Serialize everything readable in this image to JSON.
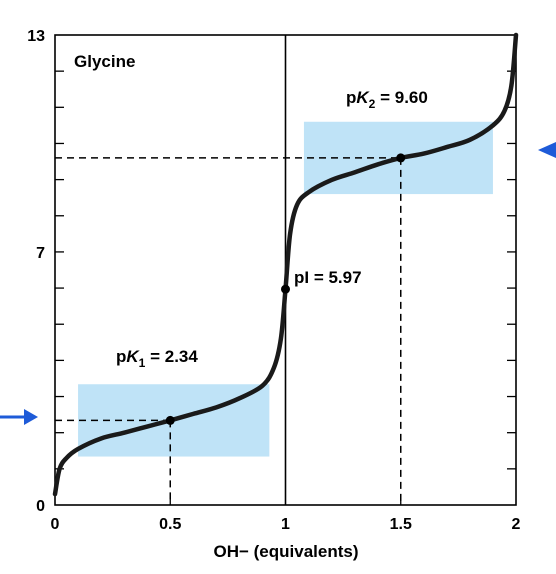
{
  "chart_data": {
    "type": "line",
    "title": "Glycine",
    "xlabel": "OH− (equivalents)",
    "ylabel": "",
    "xlim": [
      0,
      2
    ],
    "ylim": [
      0,
      13
    ],
    "x_ticks": [
      0,
      0.5,
      1,
      1.5,
      2
    ],
    "x_tick_labels": [
      "0",
      "0.5",
      "1",
      "1.5",
      "2"
    ],
    "y_ticks_labeled": [
      0,
      7,
      13
    ],
    "y_tick_labels": [
      "0",
      "7",
      "13"
    ],
    "grid": false,
    "series": [
      {
        "values_x": [
          0,
          0.02,
          0.05,
          0.1,
          0.2,
          0.3,
          0.4,
          0.5,
          0.6,
          0.7,
          0.8,
          0.9,
          0.95,
          0.98,
          1.0,
          1.02,
          1.05,
          1.1,
          1.2,
          1.3,
          1.4,
          1.5,
          1.6,
          1.7,
          1.8,
          1.9,
          1.95,
          1.98,
          2.0
        ],
        "values_y": [
          0.3,
          1.0,
          1.3,
          1.55,
          1.84,
          2.0,
          2.17,
          2.34,
          2.52,
          2.7,
          2.95,
          3.3,
          3.8,
          4.6,
          5.97,
          7.5,
          8.3,
          8.65,
          8.99,
          9.2,
          9.42,
          9.6,
          9.72,
          9.9,
          10.1,
          10.5,
          10.9,
          11.6,
          13.0
        ]
      }
    ],
    "shaded_regions": [
      {
        "x": [
          0.1,
          0.93
        ],
        "y": [
          1.34,
          3.34
        ]
      },
      {
        "x": [
          1.08,
          1.9
        ],
        "y": [
          8.6,
          10.6
        ]
      }
    ],
    "points": [
      {
        "x": 0.5,
        "y": 2.34,
        "label": "pK1 = 2.34"
      },
      {
        "x": 1.0,
        "y": 5.97,
        "label": "pI = 5.97"
      },
      {
        "x": 1.5,
        "y": 9.6,
        "label": "pK2 = 9.60"
      }
    ],
    "annotations": {
      "pk1_prefix": "p",
      "pk1_italic": "K",
      "pk1_sub": "1",
      "pk1_suffix": " = 2.34",
      "pk2_prefix": "p",
      "pk2_italic": "K",
      "pk2_sub": "2",
      "pk2_suffix": " = 9.60",
      "pi_label": "pI = 5.97"
    },
    "colors": {
      "curve": "#1a1a1a",
      "shade": "#bfe3f7",
      "arrow": "#1e5bd8",
      "axis": "#000000"
    }
  }
}
